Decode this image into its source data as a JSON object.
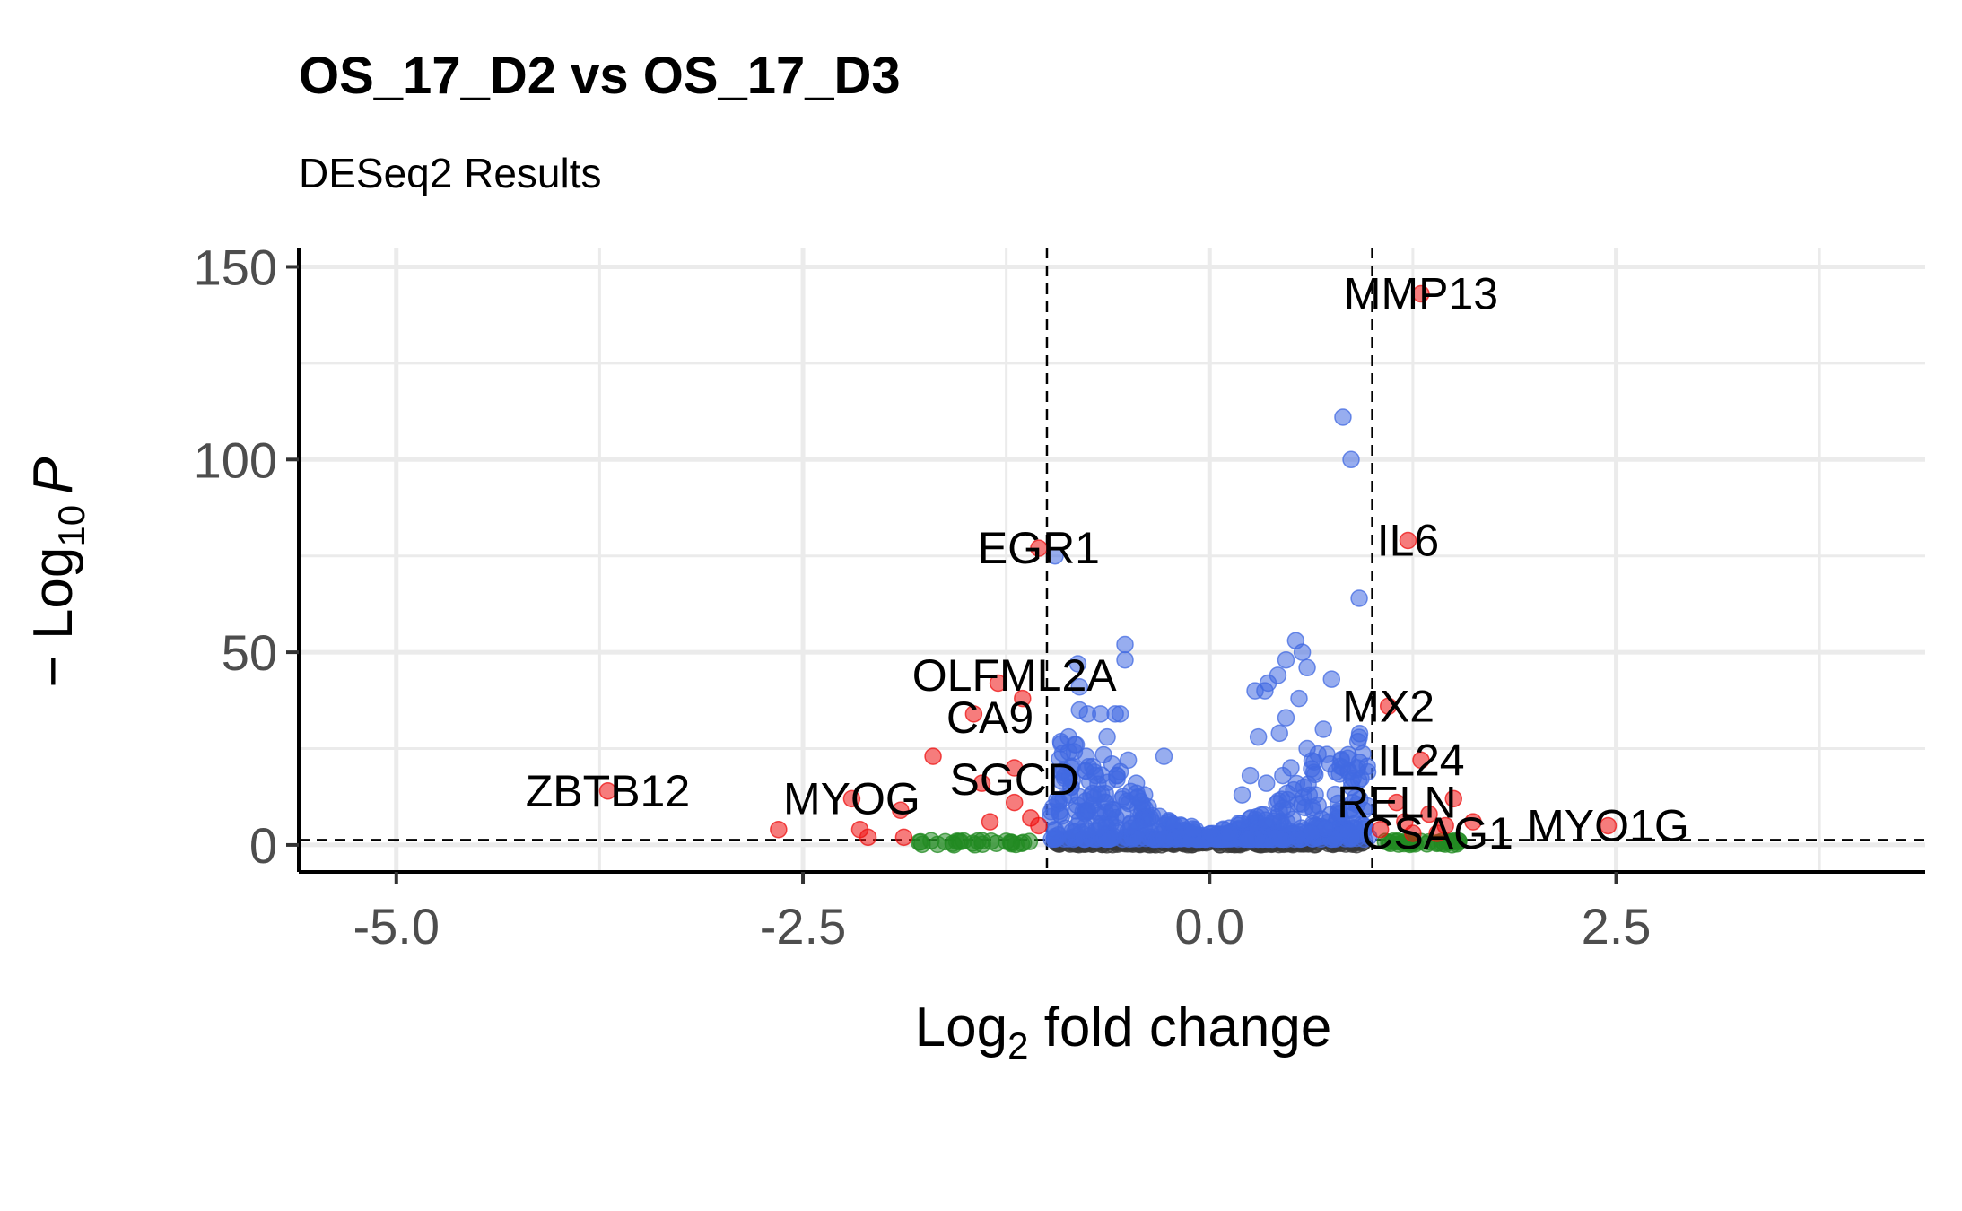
{
  "chart_data": {
    "type": "scatter",
    "title": "OS_17_D2 vs OS_17_D3",
    "subtitle": "DESeq2 Results",
    "xlabel": {
      "main": "Log",
      "sub": "2",
      "rest": " fold change"
    },
    "ylabel": {
      "prefix": "− Log",
      "sub": "10",
      "var": "P"
    },
    "xlim": [
      -5.6,
      4.4
    ],
    "ylim": [
      -7,
      155
    ],
    "x_ticks": [
      -5.0,
      -2.5,
      0.0,
      2.5
    ],
    "x_tick_labels": [
      "-5.0",
      "-2.5",
      "0.0",
      "2.5"
    ],
    "y_ticks": [
      0,
      50,
      100,
      150
    ],
    "y_tick_labels": [
      "0",
      "50",
      "100",
      "150"
    ],
    "grid": true,
    "cutoffs": {
      "fold_change": [
        -1.0,
        1.0
      ],
      "p_value_line": 1.3
    },
    "colors": {
      "ns": "#3a3a3a",
      "log2fc": "#228b22",
      "p": "#4169e1",
      "p_and_log2fc": "#ee1111"
    },
    "labeled_genes": [
      {
        "gene": "MMP13",
        "x": 1.3,
        "y": 143
      },
      {
        "gene": "EGR1",
        "x": -1.05,
        "y": 77
      },
      {
        "gene": "IL6",
        "x": 1.22,
        "y": 79
      },
      {
        "gene": "OLFML2A",
        "x": -1.2,
        "y": 44
      },
      {
        "gene": "MX2",
        "x": 1.1,
        "y": 36
      },
      {
        "gene": "CA9",
        "x": -1.35,
        "y": 33
      },
      {
        "gene": "IL24",
        "x": 1.3,
        "y": 22
      },
      {
        "gene": "SGCD",
        "x": -1.2,
        "y": 17
      },
      {
        "gene": "ZBTB12",
        "x": -3.7,
        "y": 14
      },
      {
        "gene": "RELN",
        "x": 1.15,
        "y": 11
      },
      {
        "gene": "MYOG",
        "x": -2.2,
        "y": 12
      },
      {
        "gene": "CSAG1",
        "x": 1.4,
        "y": 3
      },
      {
        "gene": "MYO1G",
        "x": 2.45,
        "y": 5
      }
    ],
    "series": [
      {
        "category": "p_and_log2fc",
        "points": [
          [
            1.3,
            143
          ],
          [
            1.22,
            79
          ],
          [
            -1.05,
            77
          ],
          [
            1.1,
            36
          ],
          [
            1.3,
            22
          ],
          [
            -3.7,
            14
          ],
          [
            2.45,
            5
          ],
          [
            -2.65,
            4
          ],
          [
            -2.2,
            12
          ],
          [
            -2.15,
            4
          ],
          [
            -2.1,
            2
          ],
          [
            -1.88,
            2
          ],
          [
            -1.9,
            9
          ],
          [
            -1.7,
            23
          ],
          [
            -1.45,
            34
          ],
          [
            -1.15,
            38
          ],
          [
            -1.3,
            42
          ],
          [
            -1.2,
            20
          ],
          [
            -1.4,
            16
          ],
          [
            -1.2,
            11
          ],
          [
            -1.35,
            6
          ],
          [
            -1.1,
            7
          ],
          [
            -1.05,
            5
          ],
          [
            1.15,
            11
          ],
          [
            1.25,
            3
          ],
          [
            1.4,
            3
          ],
          [
            1.5,
            12
          ],
          [
            1.35,
            8
          ],
          [
            1.45,
            5
          ],
          [
            1.62,
            6
          ],
          [
            1.2,
            6
          ],
          [
            1.05,
            4
          ]
        ]
      },
      {
        "category": "p",
        "points": [
          [
            0.82,
            111
          ],
          [
            0.87,
            100
          ],
          [
            0.92,
            64
          ],
          [
            -0.95,
            75
          ],
          [
            0.53,
            53
          ],
          [
            0.57,
            50
          ],
          [
            0.47,
            48
          ],
          [
            0.42,
            44
          ],
          [
            0.36,
            42
          ],
          [
            0.6,
            46
          ],
          [
            0.75,
            43
          ],
          [
            0.34,
            40
          ],
          [
            0.55,
            38
          ],
          [
            0.28,
            40
          ],
          [
            0.7,
            30
          ],
          [
            0.47,
            33
          ],
          [
            0.3,
            28
          ],
          [
            0.6,
            25
          ],
          [
            0.74,
            21
          ],
          [
            0.43,
            29
          ],
          [
            -0.52,
            52
          ],
          [
            -0.52,
            48
          ],
          [
            -0.81,
            47
          ],
          [
            -0.8,
            41
          ],
          [
            -0.55,
            34
          ],
          [
            -0.58,
            34
          ],
          [
            -0.63,
            28
          ],
          [
            -0.8,
            35
          ],
          [
            -0.75,
            34
          ],
          [
            -0.82,
            26
          ],
          [
            -0.5,
            22
          ],
          [
            -0.28,
            23
          ],
          [
            -0.67,
            34
          ],
          [
            -0.85,
            20
          ],
          [
            -0.85,
            15
          ],
          [
            -0.9,
            12
          ],
          [
            -0.7,
            18
          ],
          [
            -0.55,
            19
          ],
          [
            -0.45,
            16
          ],
          [
            -0.4,
            13
          ],
          [
            -0.6,
            21
          ],
          [
            0.25,
            18
          ],
          [
            0.35,
            16
          ],
          [
            0.5,
            20
          ],
          [
            0.58,
            15
          ],
          [
            0.65,
            13
          ],
          [
            0.2,
            13
          ],
          [
            0.45,
            18
          ],
          [
            0.88,
            11
          ],
          [
            0.95,
            9
          ],
          [
            0.8,
            8
          ]
        ]
      }
    ]
  }
}
